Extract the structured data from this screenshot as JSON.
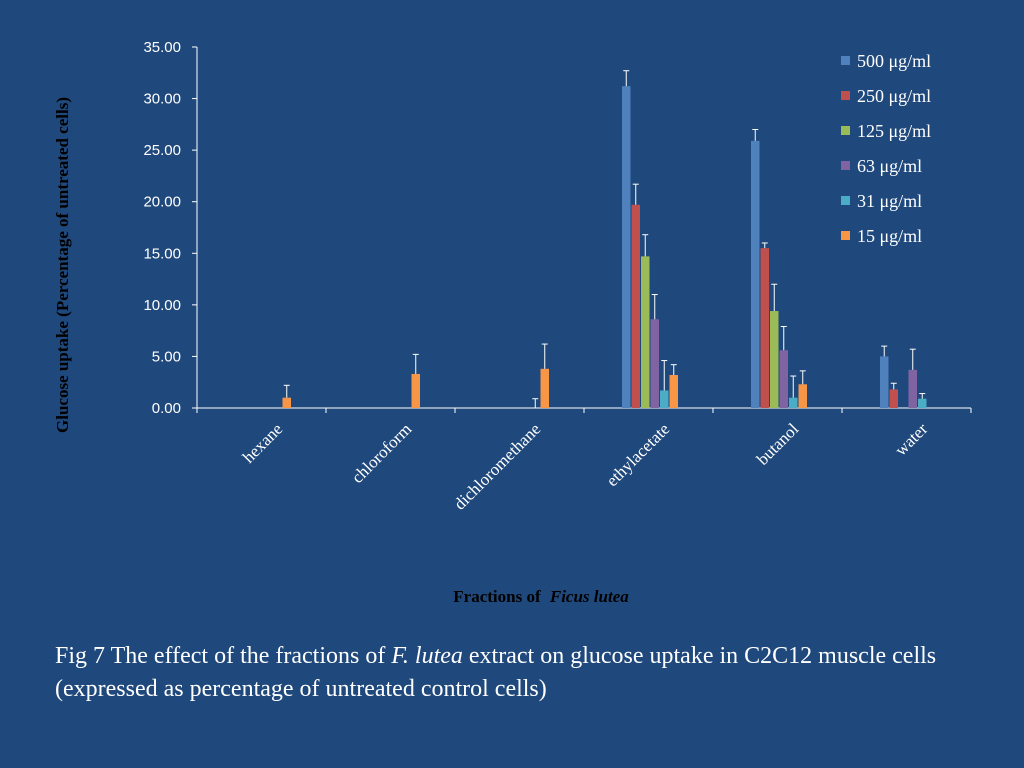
{
  "chart_data": {
    "type": "bar",
    "xlabel": "Fractions of",
    "xlabel_italic": "Ficus lutea",
    "ylabel": "Glucose uptake  (Percentage of untreated cells)",
    "ylim": [
      0,
      35
    ],
    "yticks": [
      "0.00",
      "5.00",
      "10.00",
      "15.00",
      "20.00",
      "25.00",
      "30.00",
      "35.00"
    ],
    "ytick_values": [
      0,
      5,
      10,
      15,
      20,
      25,
      30,
      35
    ],
    "legend_position": "top-right",
    "grid": false,
    "categories": [
      "hexane",
      "chloroform",
      "dichloromethane",
      "ethylacetate",
      "butanol",
      "water"
    ],
    "series": [
      {
        "name": "500 μg/ml",
        "color": "#4f81bd",
        "values": [
          0,
          0,
          0,
          31.2,
          25.9,
          5.0
        ],
        "errors": [
          0,
          0,
          0,
          1.5,
          1.1,
          1.0
        ]
      },
      {
        "name": "250 μg/ml",
        "color": "#c0504d",
        "values": [
          0,
          0,
          0,
          19.7,
          15.5,
          1.8
        ],
        "errors": [
          0,
          0,
          0,
          2.0,
          0.5,
          0.6
        ]
      },
      {
        "name": "125 μg/ml",
        "color": "#9bbb59",
        "values": [
          0,
          0,
          0,
          14.7,
          9.4,
          0
        ],
        "errors": [
          0,
          0,
          0,
          2.1,
          2.6,
          0
        ]
      },
      {
        "name": "63 μg/ml",
        "color": "#8064a2",
        "values": [
          0,
          0,
          0,
          8.6,
          5.6,
          3.7
        ],
        "errors": [
          0,
          0,
          0,
          2.4,
          2.3,
          2.0
        ]
      },
      {
        "name": "31 μg/ml",
        "color": "#4bacc6",
        "values": [
          0,
          0,
          0,
          1.7,
          1.0,
          0.9
        ],
        "errors": [
          0,
          0,
          0.9,
          2.9,
          2.1,
          0.5
        ]
      },
      {
        "name": "15 μg/ml",
        "color": "#f79646",
        "values": [
          1.0,
          3.3,
          3.8,
          3.2,
          2.3,
          0
        ],
        "errors": [
          1.2,
          1.9,
          2.4,
          1.0,
          1.3,
          0
        ]
      }
    ]
  },
  "caption": {
    "part1": "Fig 7 The effect of the fractions of ",
    "italic": "F. lutea",
    "part2": " extract on glucose uptake in C2C12 muscle cells (expressed as percentage of untreated control cells)"
  }
}
